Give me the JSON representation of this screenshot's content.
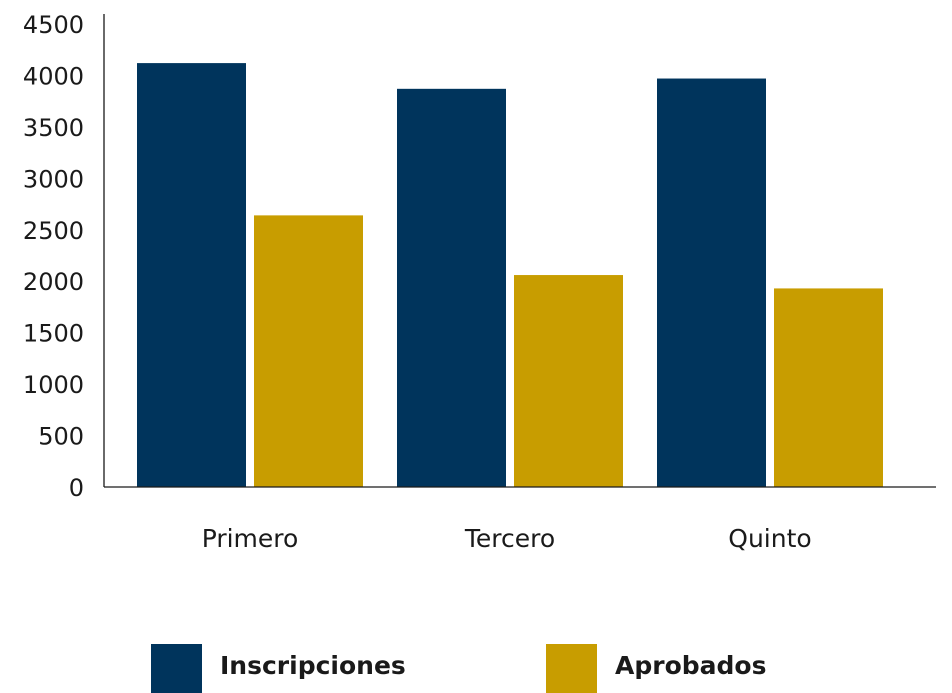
{
  "chart_data": {
    "type": "bar",
    "categories": [
      "Primero",
      "Tercero",
      "Quinto"
    ],
    "series": [
      {
        "name": "Inscripciones",
        "color": "#00345c",
        "values": [
          4120,
          3870,
          3970
        ]
      },
      {
        "name": "Aprobados",
        "color": "#c89d00",
        "values": [
          2640,
          2060,
          1930
        ]
      }
    ],
    "y_ticks": [
      "0",
      "500",
      "1000",
      "1500",
      "2000",
      "2500",
      "3000",
      "3500",
      "4000",
      "4500"
    ],
    "ylim": [
      0,
      4500
    ],
    "grid": false,
    "legend_position": "bottom",
    "title": "",
    "xlabel": "",
    "ylabel": ""
  }
}
